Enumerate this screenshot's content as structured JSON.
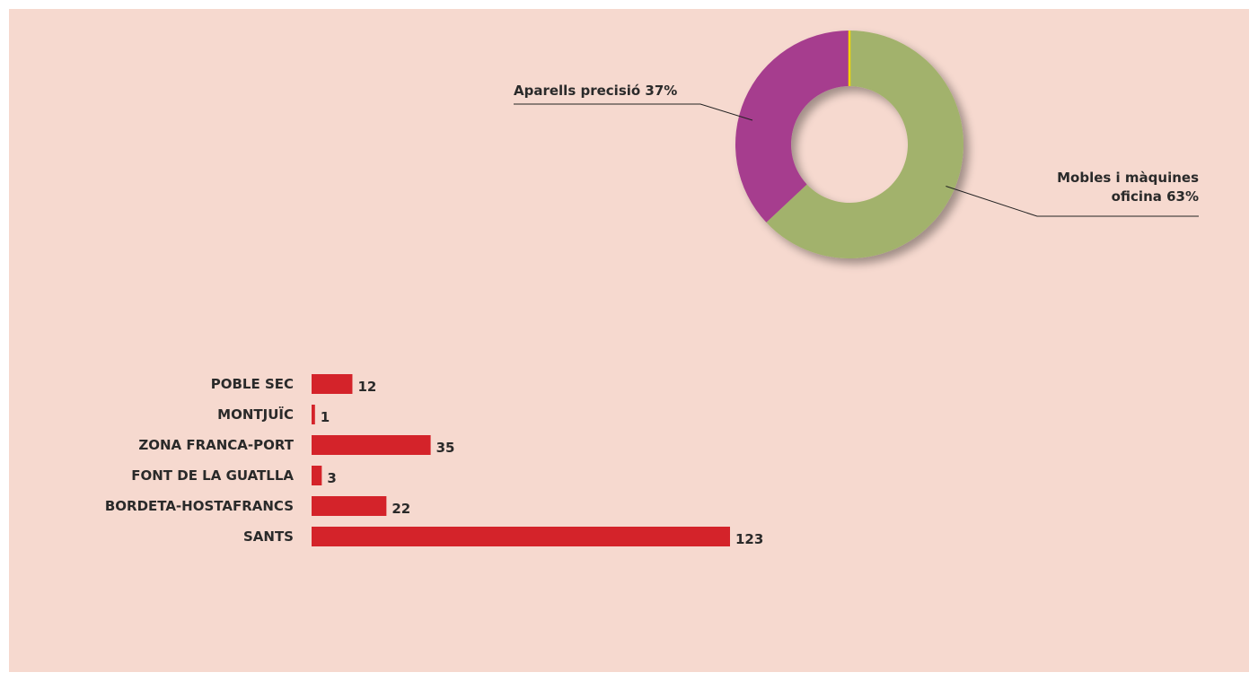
{
  "chart_data": [
    {
      "type": "pie",
      "donut": true,
      "slices": [
        {
          "label": "Mobles i màquines oficina 63%",
          "label_lines": [
            "Mobles i màquines",
            "oficina 63%"
          ],
          "value": 63,
          "color": "#a2b26c"
        },
        {
          "label": "Aparells precisió 37%",
          "label_lines": [
            "Aparells precisió 37%"
          ],
          "value": 37,
          "color": "#a63d8e"
        }
      ],
      "separator_color": "#f2d600"
    },
    {
      "type": "bar",
      "orientation": "horizontal",
      "categories": [
        "POBLE SEC",
        "MONTJUÏC",
        "ZONA FRANCA-PORT",
        "FONT DE LA GUATLLA",
        "BORDETA-HOSTAFRANCS",
        "SANTS"
      ],
      "values": [
        12,
        1,
        35,
        3,
        22,
        123
      ],
      "color": "#d4232a",
      "xlim": [
        0,
        123
      ]
    }
  ]
}
